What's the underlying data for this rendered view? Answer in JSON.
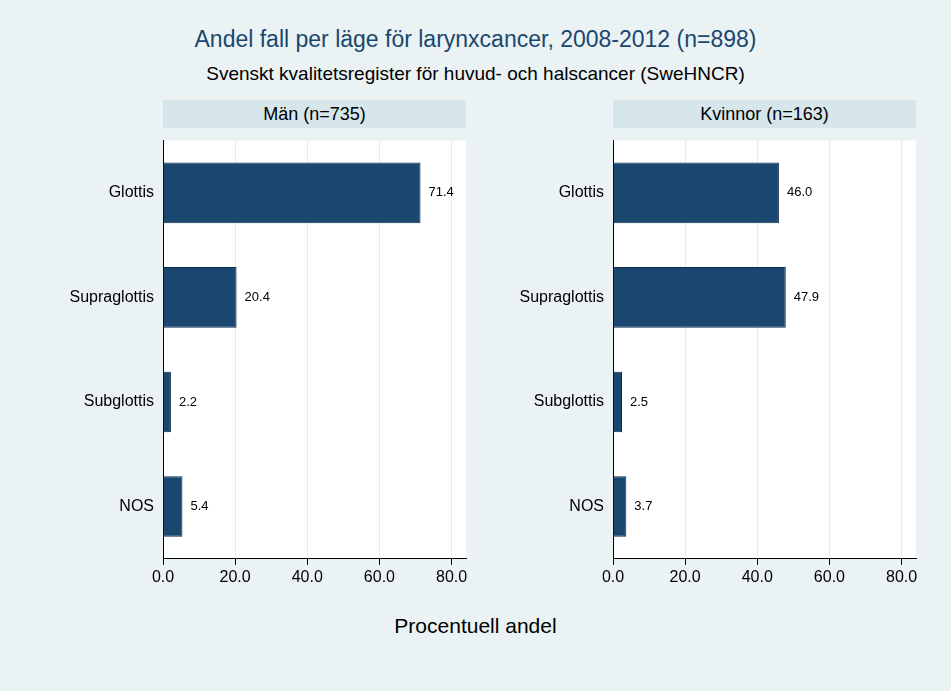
{
  "title": "Andel fall per läge för larynxcancer, 2008-2012 (n=898)",
  "subtitle": "Svenskt kvalitetsregister för huvud- och halscancer (SweHNCR)",
  "xlabel": "Procentuell andel",
  "chart_data": [
    {
      "type": "bar",
      "title": "Män (n=735)",
      "orientation": "horizontal",
      "categories": [
        "Glottis",
        "Supraglottis",
        "Subglottis",
        "NOS"
      ],
      "values": [
        71.4,
        20.4,
        2.2,
        5.4
      ],
      "value_labels": [
        "71.4",
        "20.4",
        "2.2",
        "5.4"
      ],
      "color": "#1a476f",
      "xlim": [
        0,
        84
      ],
      "xticks": [
        {
          "value": 0,
          "label": "0.0"
        },
        {
          "value": 20,
          "label": "20.0"
        },
        {
          "value": 40,
          "label": "40.0"
        },
        {
          "value": 60,
          "label": "60.0"
        },
        {
          "value": 80,
          "label": "80.0"
        }
      ],
      "grid": true,
      "data_labels": true
    },
    {
      "type": "bar",
      "title": "Kvinnor (n=163)",
      "orientation": "horizontal",
      "categories": [
        "Glottis",
        "Supraglottis",
        "Subglottis",
        "NOS"
      ],
      "values": [
        46.0,
        47.9,
        2.5,
        3.7
      ],
      "value_labels": [
        "46.0",
        "47.9",
        "2.5",
        "3.7"
      ],
      "color": "#1a476f",
      "xlim": [
        0,
        84
      ],
      "xticks": [
        {
          "value": 0,
          "label": "0.0"
        },
        {
          "value": 20,
          "label": "20.0"
        },
        {
          "value": 40,
          "label": "40.0"
        },
        {
          "value": 60,
          "label": "60.0"
        },
        {
          "value": 80,
          "label": "80.0"
        }
      ],
      "grid": true,
      "data_labels": true
    }
  ]
}
